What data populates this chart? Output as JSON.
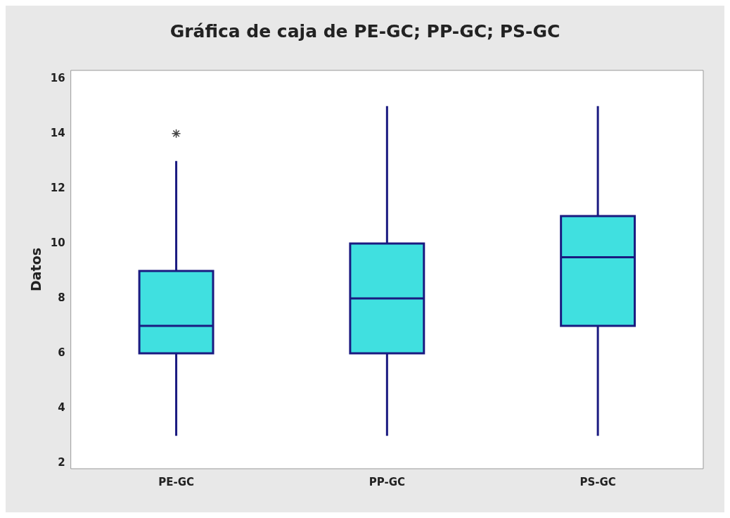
{
  "chart_data": {
    "type": "box",
    "title": "Gráfica de caja de PE-GC; PP-GC; PS-GC",
    "ylabel": "Datos",
    "categories": [
      "PE-GC",
      "PP-GC",
      "PS-GC"
    ],
    "color": "#40e0e0",
    "boxes": [
      {
        "low": 3,
        "q1": 6,
        "median": 7,
        "q3": 9,
        "high": 13,
        "outliers": [
          14
        ]
      },
      {
        "low": 3,
        "q1": 6,
        "median": 8,
        "q3": 10,
        "high": 15
      },
      {
        "low": 3,
        "q1": 7,
        "median": 9.5,
        "q3": 11,
        "high": 15
      }
    ],
    "ylim": [
      1.8,
      16.3
    ],
    "yticks": [
      2,
      4,
      6,
      8,
      10,
      12,
      14,
      16
    ]
  }
}
